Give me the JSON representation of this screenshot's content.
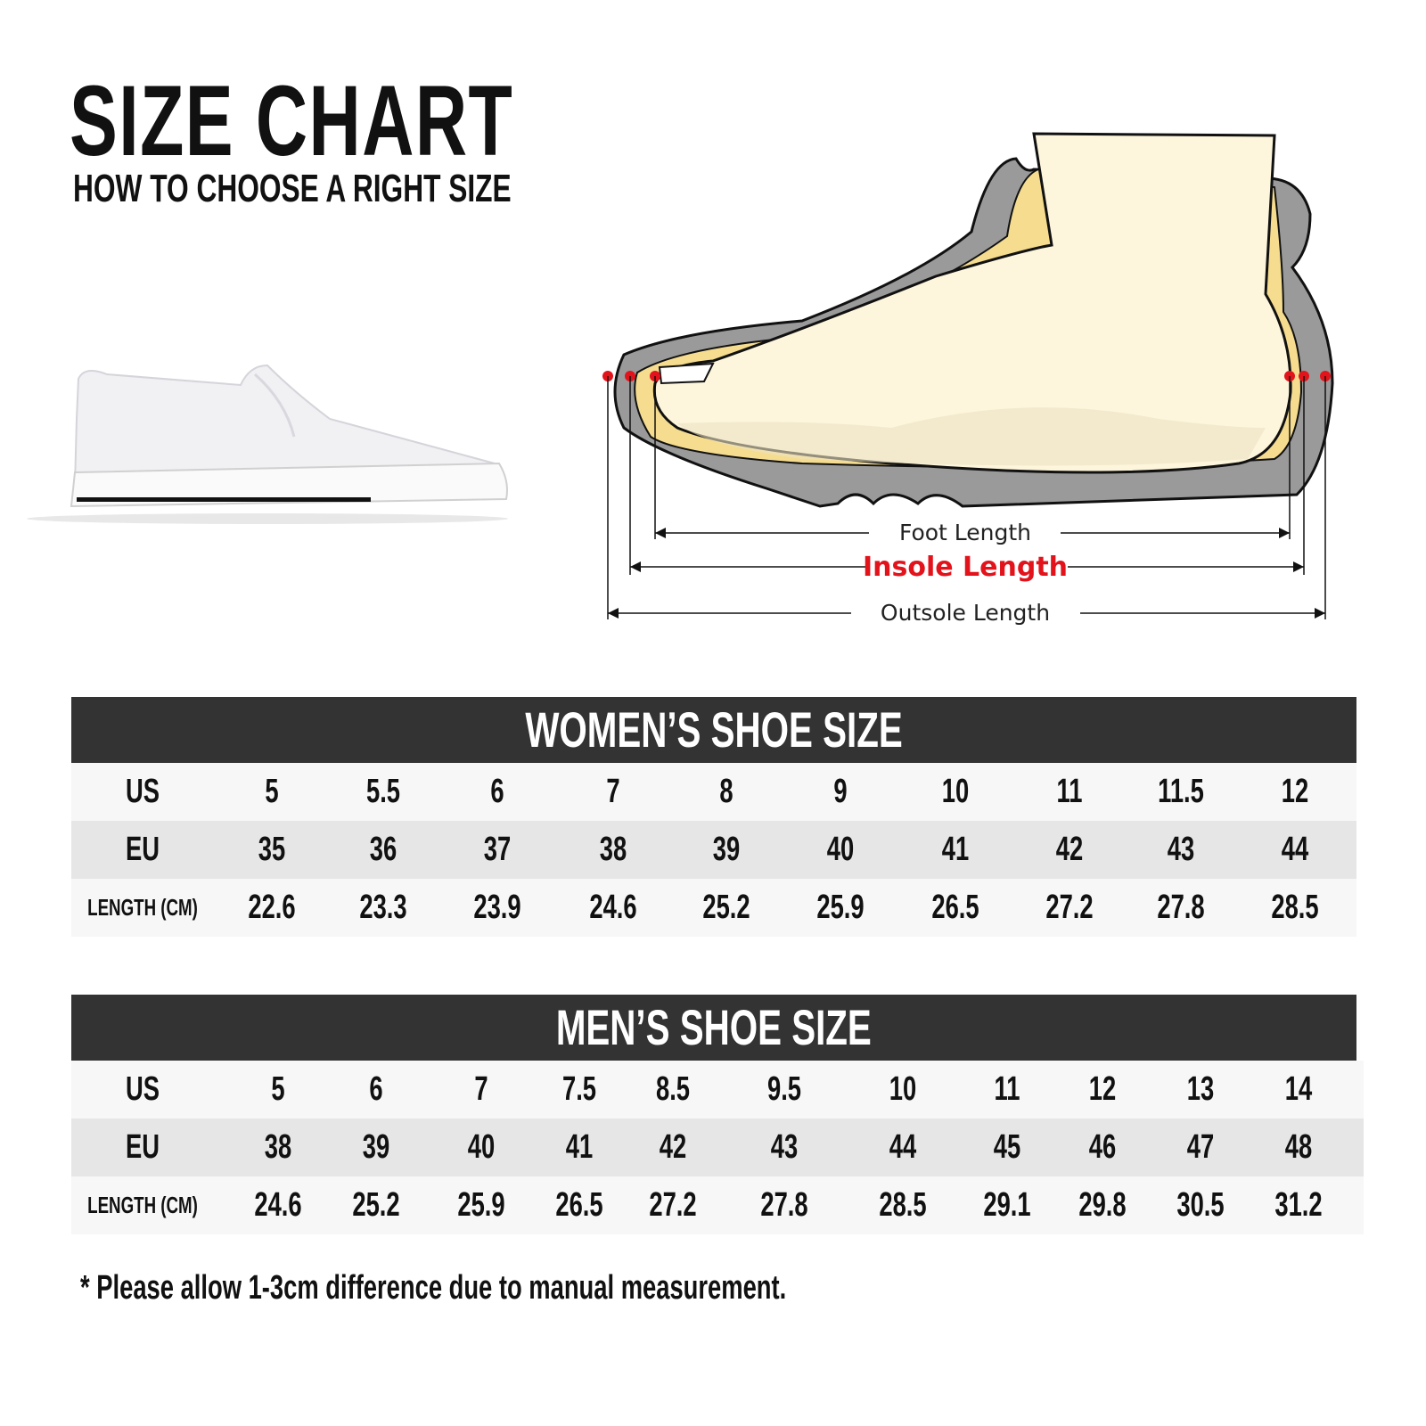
{
  "header": {
    "title": "SIZE CHART",
    "subtitle": "HOW TO CHOOSE A RIGHT SIZE"
  },
  "diagram": {
    "foot_length": "Foot Length",
    "insole_length": "Insole Length",
    "outsole_length": "Outsole Length",
    "colors": {
      "accent_red": "#e3131b",
      "sole_gray": "#9a9a9a",
      "foot": "#fdf6dc",
      "insole": "#f5dc8e"
    }
  },
  "women": {
    "title": "WOMEN’S SHOE SIZE",
    "rows": [
      {
        "label": "US",
        "values": [
          "5",
          "5.5",
          "6",
          "7",
          "8",
          "9",
          "10",
          "11",
          "11.5",
          "12"
        ]
      },
      {
        "label": "EU",
        "values": [
          "35",
          "36",
          "37",
          "38",
          "39",
          "40",
          "41",
          "42",
          "43",
          "44"
        ]
      },
      {
        "label": "LENGTH (CM)",
        "values": [
          "22.6",
          "23.3",
          "23.9",
          "24.6",
          "25.2",
          "25.9",
          "26.5",
          "27.2",
          "27.8",
          "28.5"
        ]
      }
    ]
  },
  "men": {
    "title": "MEN’S SHOE SIZE",
    "rows": [
      {
        "label": "US",
        "values": [
          "5",
          "6",
          "7",
          "7.5",
          "8.5",
          "9.5",
          "10",
          "11",
          "12",
          "13",
          "14"
        ]
      },
      {
        "label": "EU",
        "values": [
          "38",
          "39",
          "40",
          "41",
          "42",
          "43",
          "44",
          "45",
          "46",
          "47",
          "48"
        ]
      },
      {
        "label": "LENGTH (CM)",
        "values": [
          "24.6",
          "25.2",
          "25.9",
          "26.5",
          "27.2",
          "27.8",
          "28.5",
          "29.1",
          "29.8",
          "30.5",
          "31.2"
        ]
      }
    ]
  },
  "note": "* Please allow 1-3cm difference due to manual measurement.",
  "colors": {
    "table_header": "#333333",
    "row_light": "#f7f7f7",
    "row_dark": "#e6e6e6"
  }
}
